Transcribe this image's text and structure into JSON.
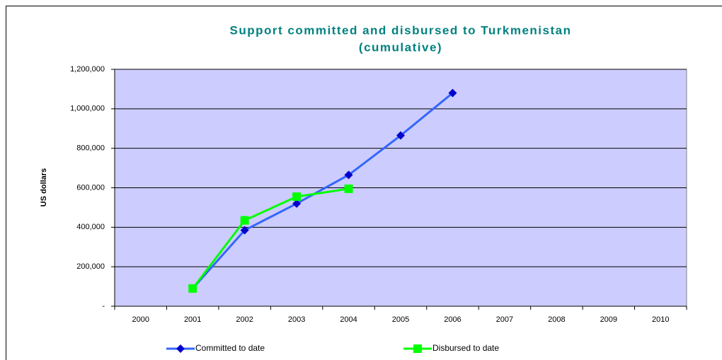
{
  "chart_data": {
    "type": "line",
    "title": [
      "Support committed and disbursed to Turkmenistan",
      "(cumulative)"
    ],
    "y_label": "US dollars",
    "categories": [
      "2000",
      "2001",
      "2002",
      "2003",
      "2004",
      "2005",
      "2006",
      "2007",
      "2008",
      "2009",
      "2010"
    ],
    "series": [
      {
        "name": "Committed to date",
        "color": "#3366ff",
        "marker_color": "#0000cc",
        "marker": "diamond",
        "values": [
          null,
          90000,
          385000,
          520000,
          665000,
          865000,
          1080000,
          null,
          null,
          null,
          null
        ]
      },
      {
        "name": "Disbursed to date",
        "color": "#00ff00",
        "marker_color": "#00ff00",
        "marker": "square",
        "values": [
          null,
          90000,
          435000,
          555000,
          595000,
          null,
          null,
          null,
          null,
          null,
          null
        ]
      }
    ],
    "ylim": [
      0,
      1200000
    ],
    "yticks": [
      {
        "value": 0,
        "label": "-"
      },
      {
        "value": 200000,
        "label": "200,000"
      },
      {
        "value": 400000,
        "label": "400,000"
      },
      {
        "value": 600000,
        "label": "600,000"
      },
      {
        "value": 800000,
        "label": "800,000"
      },
      {
        "value": 1000000,
        "label": "1,000,000"
      },
      {
        "value": 1200000,
        "label": "1,200,000"
      }
    ],
    "grid": true,
    "plot_background": "#ccccff",
    "legend": "bottom"
  }
}
